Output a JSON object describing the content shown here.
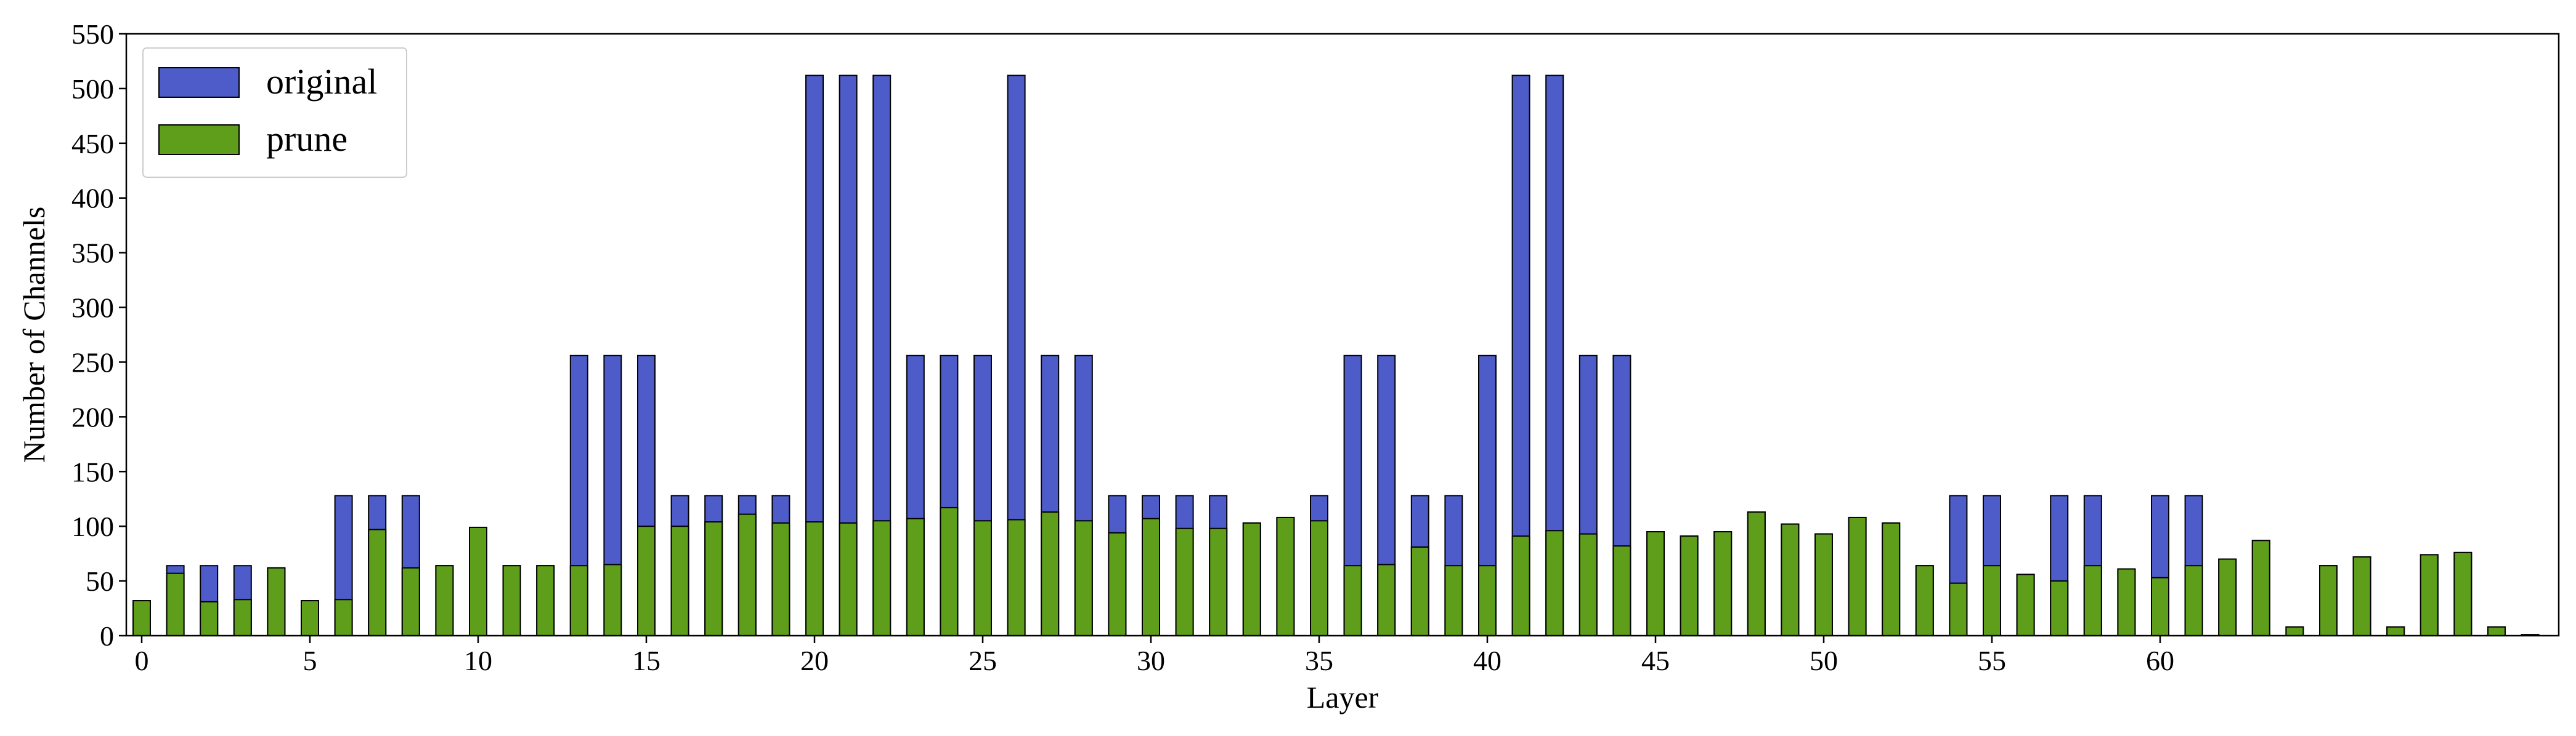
{
  "chart_data": {
    "type": "bar",
    "title": "",
    "xlabel": "Layer",
    "ylabel": "Number of Channels",
    "ylim": [
      0,
      550
    ],
    "yticks": [
      0,
      50,
      100,
      150,
      200,
      250,
      300,
      350,
      400,
      450,
      500,
      550
    ],
    "xticks": [
      0,
      5,
      10,
      15,
      20,
      25,
      30,
      35,
      40,
      45,
      50,
      55,
      60
    ],
    "grid": false,
    "legend_position": "top-left",
    "series": [
      {
        "name": "original",
        "color": "#4d5cc8",
        "values": [
          32,
          64,
          64,
          64,
          62,
          32,
          128,
          128,
          128,
          64,
          99,
          64,
          64,
          256,
          256,
          256,
          128,
          128,
          128,
          128,
          512,
          512,
          512,
          256,
          256,
          256,
          512,
          256,
          256,
          128,
          128,
          128,
          128,
          103,
          108,
          128,
          256,
          256,
          128,
          128,
          256,
          512,
          512,
          256,
          256,
          95,
          91,
          95,
          113,
          102,
          93,
          108,
          103,
          64,
          128,
          128,
          56,
          128,
          128,
          61,
          128,
          128,
          70,
          87,
          8,
          64,
          72,
          8,
          74,
          76,
          8,
          1
        ]
      },
      {
        "name": "prune",
        "color": "#5e9e1a",
        "values": [
          32,
          57,
          31,
          33,
          62,
          32,
          33,
          97,
          62,
          64,
          99,
          64,
          64,
          64,
          65,
          100,
          100,
          104,
          111,
          103,
          104,
          103,
          105,
          107,
          117,
          105,
          106,
          113,
          105,
          94,
          107,
          98,
          98,
          103,
          108,
          105,
          64,
          65,
          81,
          64,
          64,
          91,
          96,
          93,
          82,
          95,
          91,
          95,
          113,
          102,
          93,
          108,
          103,
          64,
          48,
          64,
          56,
          50,
          64,
          61,
          53,
          64,
          70,
          87,
          8,
          64,
          72,
          8,
          74,
          76,
          8,
          1
        ]
      }
    ]
  }
}
